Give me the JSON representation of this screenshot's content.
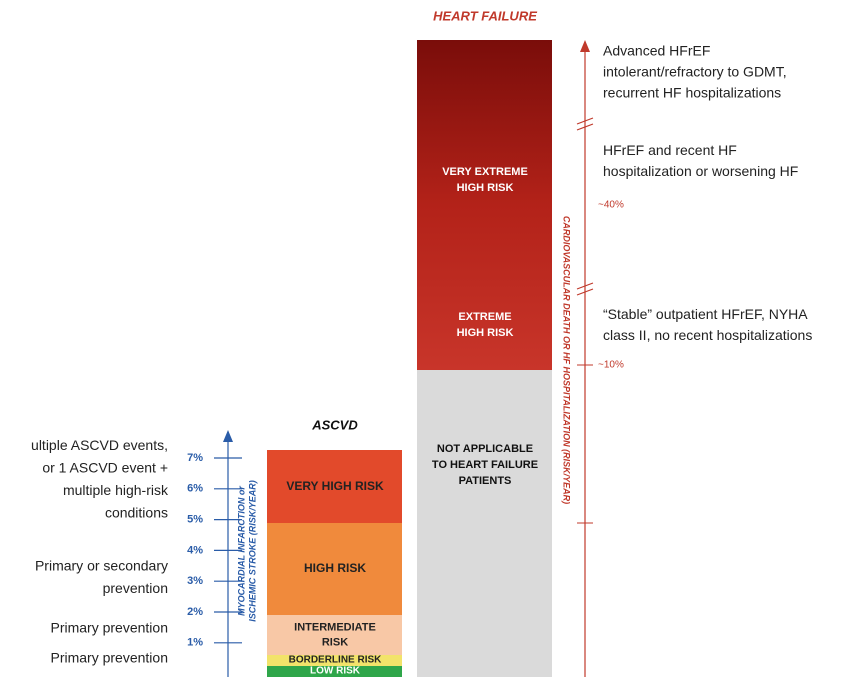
{
  "heart_failure": {
    "title": "HEART FAILURE",
    "segments": [
      {
        "lines": [
          "VERY EXTREME",
          "HIGH RISK"
        ]
      },
      {
        "lines": [
          "EXTREME",
          "HIGH RISK"
        ]
      },
      {
        "lines": [
          "NOT APPLICABLE",
          "TO HEART FAILURE",
          "PATIENTS"
        ]
      }
    ],
    "axis_label": "CARDIOVASCULAR DEATH OR HF HOSPITALIZATION (RISK/YEAR)",
    "axis_ticks": [
      "~40%",
      "~10%"
    ],
    "descriptions": [
      {
        "lines": [
          "Advanced HFrEF",
          "intolerant/refractory to GDMT,",
          "recurrent HF hospitalizations"
        ]
      },
      {
        "lines": [
          "HFrEF and recent HF",
          "hospitalization or worsening HF"
        ]
      },
      {
        "lines": [
          "“Stable” outpatient HFrEF, NYHA",
          "class II, no recent hospitalizations"
        ]
      }
    ]
  },
  "ascvd": {
    "title": "ASCVD",
    "segments": [
      {
        "lines": [
          "VERY HIGH RISK"
        ]
      },
      {
        "lines": [
          "HIGH RISK"
        ]
      },
      {
        "lines": [
          "INTERMEDIATE",
          "RISK"
        ]
      },
      {
        "lines": [
          "BORDERLINE RISK"
        ]
      },
      {
        "lines": [
          "LOW RISK"
        ]
      }
    ],
    "axis_label_lines": [
      "MYOCARDIAL INFARCTION or",
      "ISCHEMIC STROKE (RISK/YEAR)"
    ],
    "axis_ticks": [
      "7%",
      "6%",
      "5%",
      "4%",
      "3%",
      "2%",
      "1%"
    ],
    "descriptions": [
      {
        "lines": [
          "ultiple ASCVD events,",
          "or 1 ASCVD event +",
          "multiple high-risk",
          "conditions"
        ]
      },
      {
        "lines": [
          "Primary or secondary",
          "prevention"
        ]
      },
      {
        "lines": [
          "Primary prevention"
        ]
      },
      {
        "lines": [
          "Primary prevention"
        ]
      }
    ]
  }
}
